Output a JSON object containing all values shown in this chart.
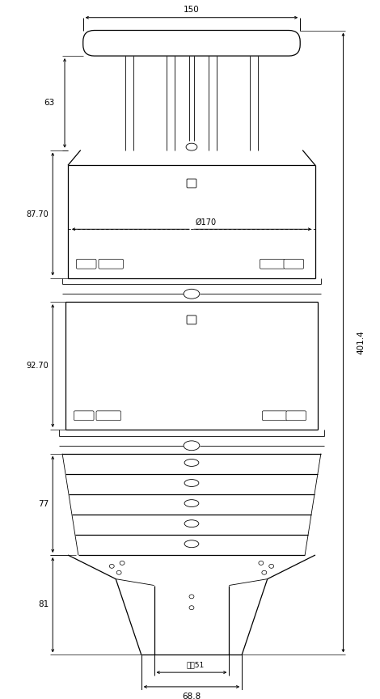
{
  "bg_color": "#ffffff",
  "line_color": "#000000",
  "fig_width": 4.7,
  "fig_height": 8.64,
  "dpi": 100,
  "dim_150": "150",
  "dim_63": "63",
  "dim_87_70": "87.70",
  "dim_92_70": "92.70",
  "dim_77": "77",
  "dim_81": "81",
  "dim_401_4": "401.4",
  "dim_phi170": "Ø170",
  "dim_neijing51": "内彤51",
  "dim_68_8": "68.8"
}
